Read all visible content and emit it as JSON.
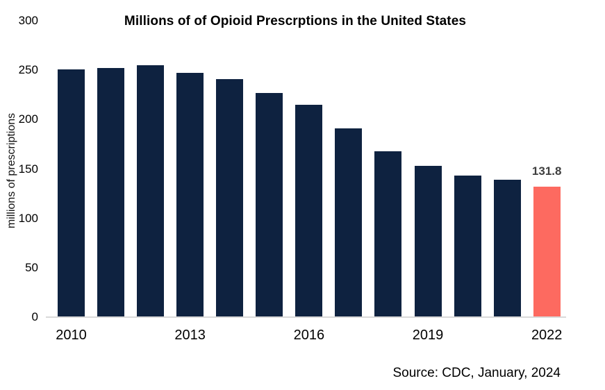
{
  "title": "Millions of of Opioid Prescrptions in the United States",
  "source": "Source: CDC, January, 2024",
  "chart_data": {
    "type": "bar",
    "title": "Millions of of Opioid Prescrptions in the United States",
    "categories": [
      2010,
      2011,
      2012,
      2013,
      2014,
      2015,
      2016,
      2017,
      2018,
      2019,
      2020,
      2021,
      2022
    ],
    "values": [
      251,
      252,
      255,
      247,
      241,
      227,
      215,
      191,
      168,
      153,
      143,
      139,
      131.8
    ],
    "xlabel": "",
    "ylabel": "millions of prescriptions",
    "ylim": [
      0,
      300
    ],
    "yticks": [
      0,
      50,
      100,
      150,
      200,
      250,
      300
    ],
    "xticks_shown": [
      2010,
      2013,
      2016,
      2019,
      2022
    ],
    "grid": false,
    "legend": false,
    "bar_color": "#0e2240",
    "highlight_index": 12,
    "highlight_color": "#fd6a60",
    "baseline_color": "#d9d9d9",
    "annotation": {
      "text": "131.8",
      "target_year": 2022
    }
  }
}
